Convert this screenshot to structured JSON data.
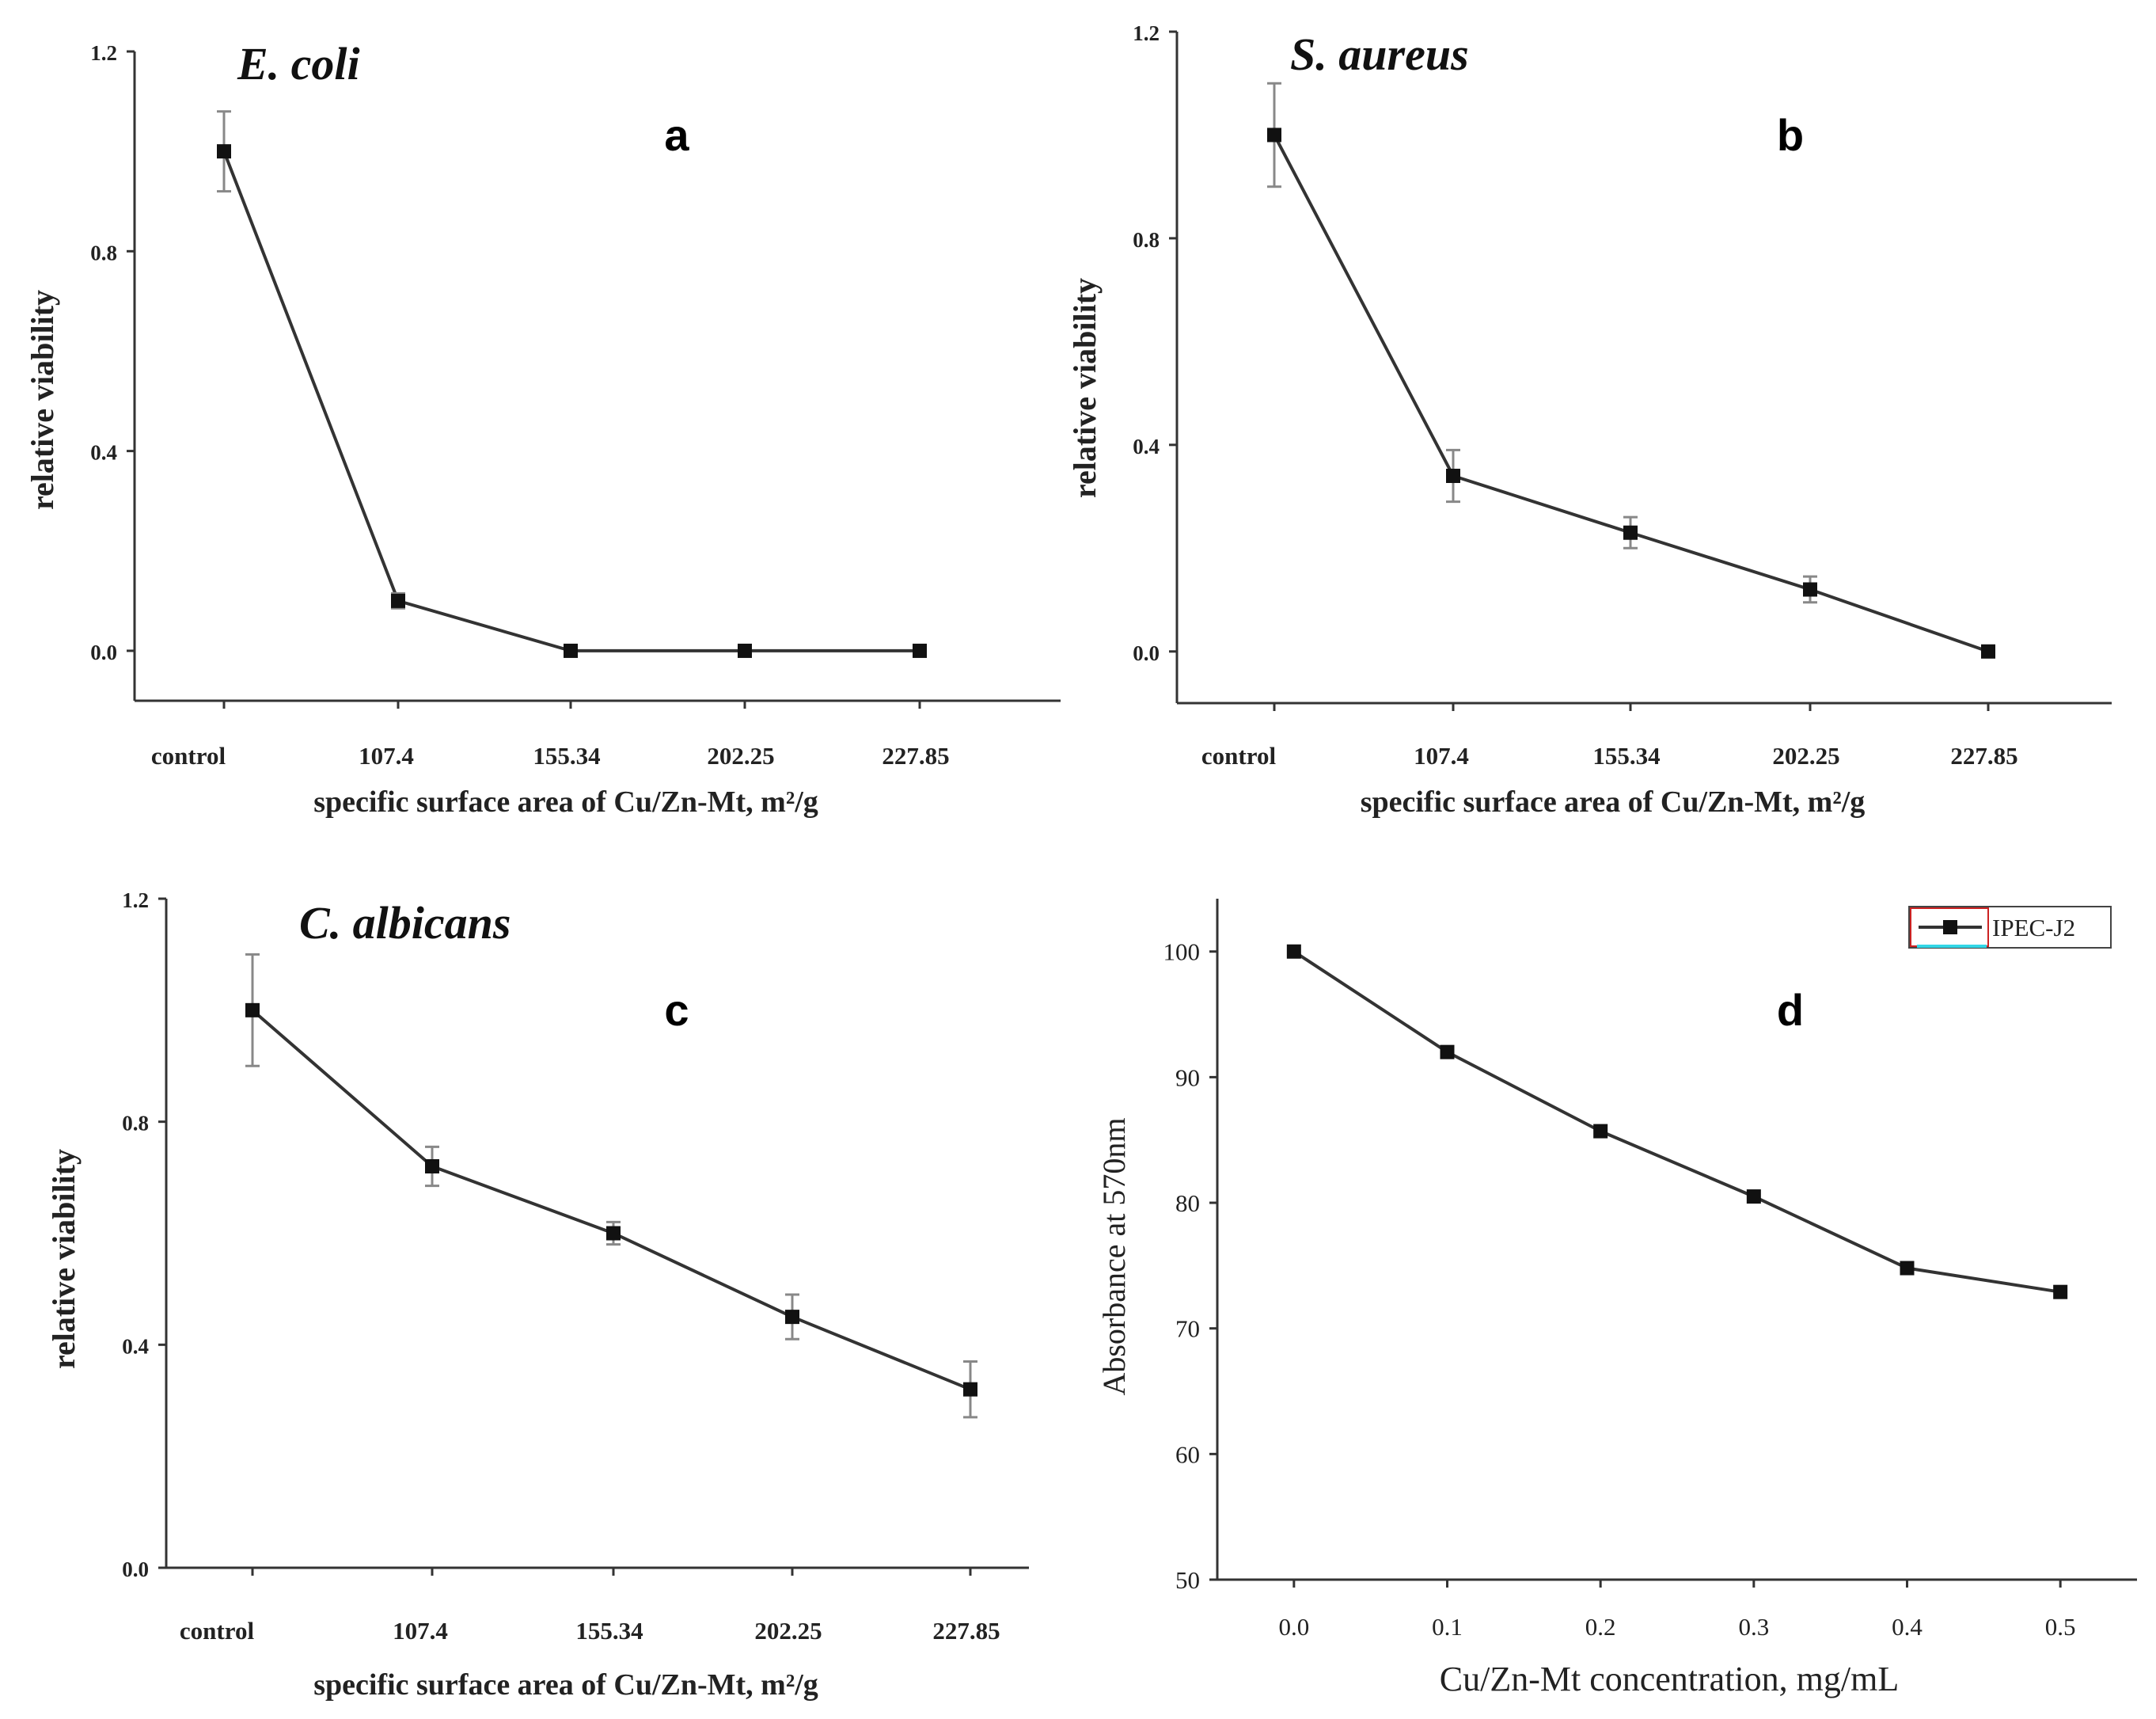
{
  "colors": {
    "line": "#333333",
    "axis": "#333333",
    "marker": "#111111",
    "errorbar": "#888888",
    "legend_frame": "#cc2222",
    "legend_underline": "#33d6e6"
  },
  "chart_data": [
    {
      "id": "a",
      "type": "line",
      "panel_label": "a",
      "title": "E. coli",
      "xlabel": "specific surface area of Cu/Zn-Mt, m²/g",
      "ylabel": "relative viability",
      "categories": [
        "control",
        "107.4",
        "155.34",
        "202.25",
        "227.85"
      ],
      "values": [
        1.0,
        0.1,
        0.0,
        0.0,
        0.0
      ],
      "errors": [
        0.08,
        0.015,
        0.0,
        0.0,
        0.0
      ],
      "ylim": [
        -0.1,
        1.2
      ],
      "yticks": [
        0.0,
        0.4,
        0.8,
        1.2
      ],
      "ytick_labels": [
        "0.0",
        "0.4",
        "0.8",
        "1.2"
      ]
    },
    {
      "id": "b",
      "type": "line",
      "panel_label": "b",
      "title": "S.  aureus",
      "xlabel": "specific surface area of Cu/Zn-Mt, m²/g",
      "ylabel": "relative viability",
      "categories": [
        "control",
        "107.4",
        "155.34",
        "202.25",
        "227.85"
      ],
      "values": [
        1.0,
        0.34,
        0.23,
        0.12,
        0.0
      ],
      "errors": [
        0.1,
        0.05,
        0.03,
        0.025,
        0.0
      ],
      "ylim": [
        -0.1,
        1.2
      ],
      "yticks": [
        0.0,
        0.4,
        0.8,
        1.2
      ],
      "ytick_labels": [
        "0.0",
        "0.4",
        "0.8",
        "1.2"
      ]
    },
    {
      "id": "c",
      "type": "line",
      "panel_label": "c",
      "title": "C.  albicans",
      "xlabel": "specific surface area of Cu/Zn-Mt, m²/g",
      "ylabel": "relative viability",
      "categories": [
        "control",
        "107.4",
        "155.34",
        "202.25",
        "227.85"
      ],
      "values": [
        1.0,
        0.72,
        0.6,
        0.45,
        0.32
      ],
      "errors": [
        0.1,
        0.035,
        0.02,
        0.04,
        0.05
      ],
      "ylim": [
        0.0,
        1.2
      ],
      "yticks": [
        0.0,
        0.4,
        0.8,
        1.2
      ],
      "ytick_labels": [
        "0.0",
        "0.4",
        "0.8",
        "1.2"
      ]
    },
    {
      "id": "d",
      "type": "line",
      "panel_label": "d",
      "title": "",
      "xlabel": "Cu/Zn-Mt concentration, mg/mL",
      "ylabel": "Absorbance at 570nm",
      "x": [
        0.0,
        0.1,
        0.2,
        0.3,
        0.4,
        0.5
      ],
      "xticks": [
        0.0,
        0.1,
        0.2,
        0.3,
        0.4,
        0.5
      ],
      "xtick_labels": [
        "0.0",
        "0.1",
        "0.2",
        "0.3",
        "0.4",
        "0.5"
      ],
      "xlim": [
        -0.05,
        0.55
      ],
      "series": [
        {
          "name": "IPEC-J2",
          "values": [
            100,
            92,
            85.7,
            80.5,
            74.8,
            72.9
          ]
        }
      ],
      "ylim": [
        50,
        102
      ],
      "yticks": [
        50,
        60,
        70,
        80,
        90,
        100
      ],
      "ytick_labels": [
        "50",
        "60",
        "70",
        "80",
        "90",
        "100"
      ],
      "legend": "top-right"
    }
  ]
}
